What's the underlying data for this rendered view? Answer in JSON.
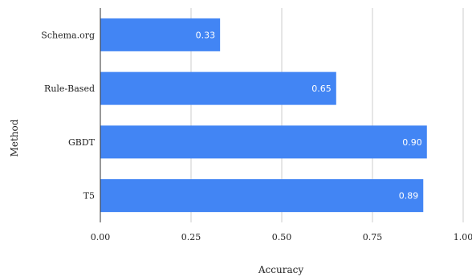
{
  "chart_data": {
    "type": "bar",
    "orientation": "horizontal",
    "categories": [
      "Schema.org",
      "Rule-Based",
      "GBDT",
      "T5"
    ],
    "values": [
      0.33,
      0.65,
      0.9,
      0.89
    ],
    "value_labels": [
      "0.33",
      "0.65",
      "0.90",
      "0.89"
    ],
    "xlabel": "Accuracy",
    "ylabel": "Method",
    "xlim": [
      0,
      1
    ],
    "xticks": [
      "0.00",
      "0.25",
      "0.50",
      "0.75",
      "1.00"
    ],
    "grid": true,
    "bar_color": "#4285f4",
    "grid_color": "#cccccc"
  }
}
